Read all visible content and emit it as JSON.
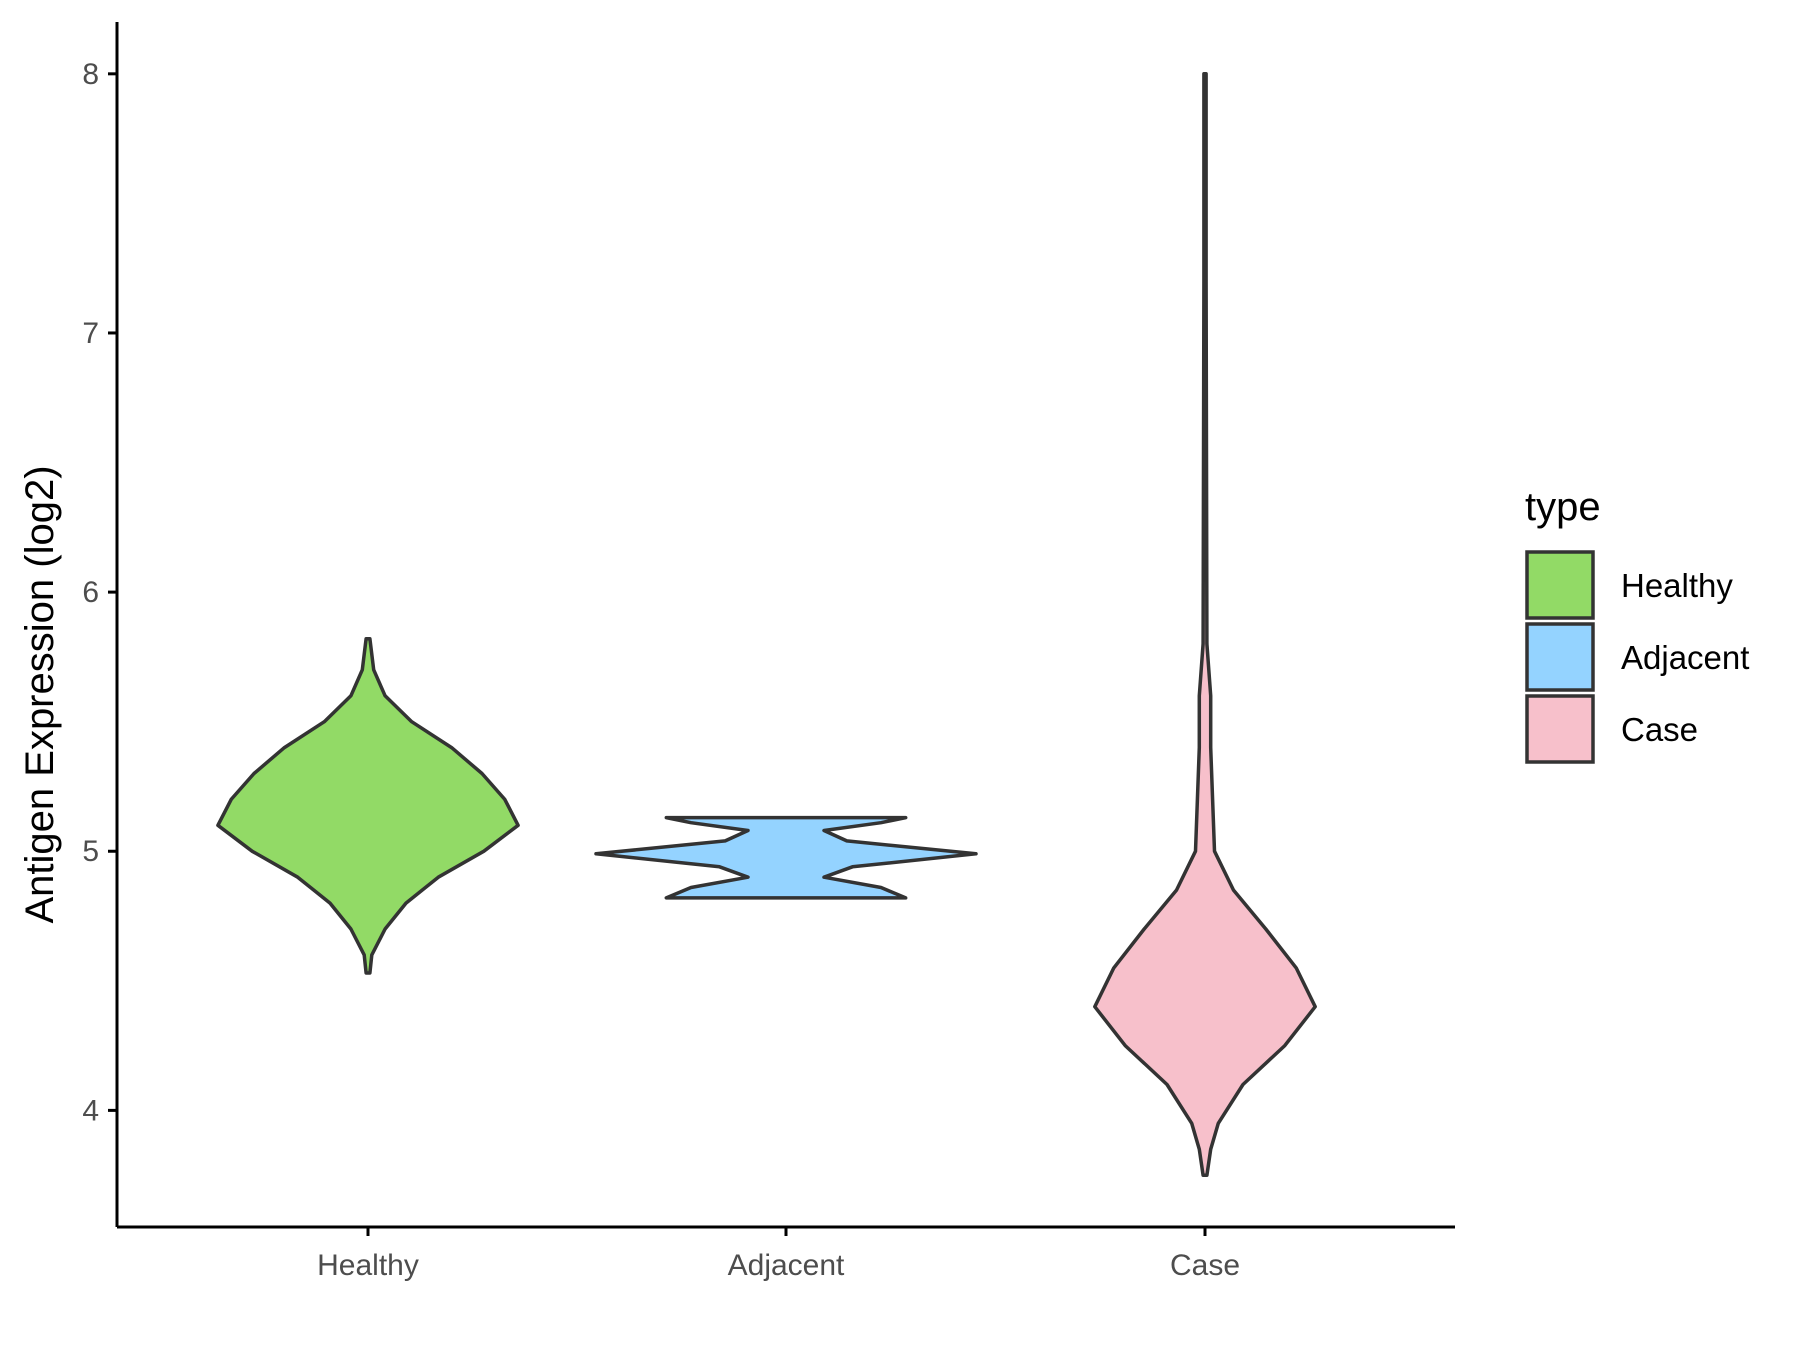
{
  "chart_data": {
    "type": "violin",
    "xlabel": "",
    "ylabel": "Antigen Expression (log2)",
    "categories": [
      "Healthy",
      "Adjacent",
      "Case"
    ],
    "ylim": [
      3.55,
      8.2
    ],
    "yticks": [
      4,
      5,
      6,
      7,
      8
    ],
    "grid": false,
    "legend": {
      "title": "type",
      "position": "right",
      "entries": [
        {
          "label": "Healthy",
          "color": "#92DA66"
        },
        {
          "label": "Adjacent",
          "color": "#94D3FF"
        },
        {
          "label": "Case",
          "color": "#F7C0CB"
        }
      ]
    },
    "series": [
      {
        "category": "Healthy",
        "color": "#92DA66",
        "outline": "#333333",
        "profile": [
          [
            4.53,
            0.01
          ],
          [
            4.6,
            0.02
          ],
          [
            4.7,
            0.09
          ],
          [
            4.8,
            0.2
          ],
          [
            4.9,
            0.37
          ],
          [
            5.0,
            0.61
          ],
          [
            5.1,
            0.79
          ],
          [
            5.2,
            0.72
          ],
          [
            5.3,
            0.6
          ],
          [
            5.4,
            0.44
          ],
          [
            5.5,
            0.23
          ],
          [
            5.6,
            0.09
          ],
          [
            5.7,
            0.03
          ],
          [
            5.82,
            0.01
          ]
        ]
      },
      {
        "category": "Adjacent",
        "color": "#94D3FF",
        "outline": "#333333",
        "profile": [
          [
            4.82,
            0.63
          ],
          [
            4.86,
            0.5
          ],
          [
            4.9,
            0.2
          ],
          [
            4.94,
            0.35
          ],
          [
            4.99,
            1.0
          ],
          [
            5.04,
            0.32
          ],
          [
            5.08,
            0.2
          ],
          [
            5.11,
            0.5
          ],
          [
            5.13,
            0.63
          ]
        ]
      },
      {
        "category": "Case",
        "color": "#F7C0CB",
        "outline": "#333333",
        "profile": [
          [
            3.75,
            0.01
          ],
          [
            3.85,
            0.03
          ],
          [
            3.95,
            0.07
          ],
          [
            4.1,
            0.2
          ],
          [
            4.25,
            0.42
          ],
          [
            4.4,
            0.58
          ],
          [
            4.55,
            0.48
          ],
          [
            4.7,
            0.32
          ],
          [
            4.85,
            0.15
          ],
          [
            5.0,
            0.05
          ],
          [
            5.2,
            0.04
          ],
          [
            5.4,
            0.03
          ],
          [
            5.6,
            0.03
          ],
          [
            5.8,
            0.01
          ],
          [
            6.5,
            0.008
          ],
          [
            7.2,
            0.006
          ],
          [
            8.0,
            0.006
          ]
        ]
      }
    ]
  }
}
